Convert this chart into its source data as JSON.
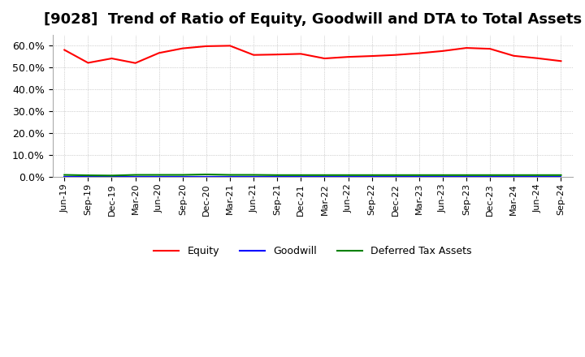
{
  "title": "[9028]  Trend of Ratio of Equity, Goodwill and DTA to Total Assets",
  "x_labels": [
    "Jun-19",
    "Sep-19",
    "Dec-19",
    "Mar-20",
    "Jun-20",
    "Sep-20",
    "Dec-20",
    "Mar-21",
    "Jun-21",
    "Sep-21",
    "Dec-21",
    "Mar-22",
    "Jun-22",
    "Sep-22",
    "Dec-22",
    "Mar-23",
    "Jun-23",
    "Sep-23",
    "Dec-23",
    "Mar-24",
    "Jun-24",
    "Sep-24"
  ],
  "equity": [
    0.581,
    0.522,
    0.542,
    0.521,
    0.567,
    0.588,
    0.598,
    0.6,
    0.558,
    0.56,
    0.563,
    0.542,
    0.549,
    0.553,
    0.558,
    0.566,
    0.576,
    0.59,
    0.586,
    0.554,
    0.543,
    0.53
  ],
  "goodwill": [
    0.0,
    0.0,
    0.0,
    0.0,
    0.0,
    0.0,
    0.0,
    0.0,
    0.0,
    0.0,
    0.0,
    0.0,
    0.0,
    0.0,
    0.0,
    0.0,
    0.0,
    0.0,
    0.0,
    0.0,
    0.0,
    0.0
  ],
  "dta": [
    0.01,
    0.008,
    0.007,
    0.01,
    0.01,
    0.01,
    0.012,
    0.01,
    0.01,
    0.009,
    0.009,
    0.009,
    0.009,
    0.009,
    0.009,
    0.009,
    0.009,
    0.009,
    0.009,
    0.009,
    0.009,
    0.009
  ],
  "equity_color": "#FF0000",
  "goodwill_color": "#0000FF",
  "dta_color": "#008000",
  "ylim": [
    0.0,
    0.65
  ],
  "yticks": [
    0.0,
    0.1,
    0.2,
    0.3,
    0.4,
    0.5,
    0.6
  ],
  "background_color": "#FFFFFF",
  "plot_bg_color": "#FFFFFF",
  "grid_color": "#AAAAAA",
  "title_fontsize": 13,
  "legend_labels": [
    "Equity",
    "Goodwill",
    "Deferred Tax Assets"
  ]
}
